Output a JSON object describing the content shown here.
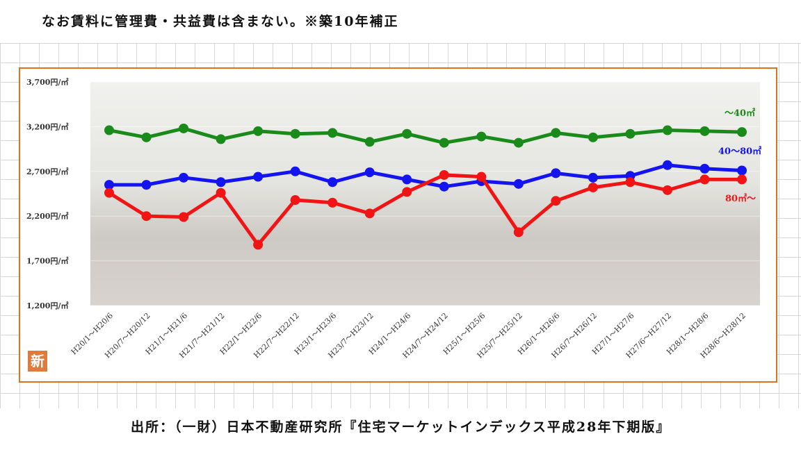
{
  "note": "なお賃料に管理費・共益費は含まない。※築10年補正",
  "source": "出所：（一財）日本不動産研究所『住宅マーケットインデックス平成28年下期版』",
  "badge": "新",
  "chart_data": {
    "type": "line",
    "title": "",
    "xlabel": "",
    "ylabel": "",
    "ylim": [
      1200,
      3700
    ],
    "yticks": [
      1200,
      1700,
      2200,
      2700,
      3200,
      3700
    ],
    "ytick_labels": [
      "1,200円/㎡",
      "1,700円/㎡",
      "2,200円/㎡",
      "2,700円/㎡",
      "3,200円/㎡",
      "3,700円/㎡"
    ],
    "categories": [
      "H20/1～H20/6",
      "H20/7～H20/12",
      "H21/1～H21/6",
      "H21/7～H21/12",
      "H22/1～H22/6",
      "H22/7～H22/12",
      "H23/1～H23/6",
      "H23/7～H23/12",
      "H24/1～H24/6",
      "H24/7～H24/12",
      "H25/1～H25/6",
      "H25/7～H25/12",
      "H26/1～H26/6",
      "H26/7～H26/12",
      "H27/1～H27/6",
      "H27/6～H27/12",
      "H28/1～H28/6",
      "H28/6～H28/12"
    ],
    "series": [
      {
        "name": "～40㎡",
        "color": "#1a8a1a",
        "values": [
          3160,
          3080,
          3180,
          3060,
          3150,
          3120,
          3130,
          3030,
          3120,
          3020,
          3090,
          3020,
          3130,
          3080,
          3120,
          3160,
          3150,
          3140
        ]
      },
      {
        "name": "40～80㎡",
        "color": "#1414f0",
        "values": [
          2550,
          2550,
          2630,
          2580,
          2640,
          2700,
          2580,
          2690,
          2610,
          2530,
          2590,
          2560,
          2680,
          2630,
          2650,
          2770,
          2730,
          2710
        ]
      },
      {
        "name": "80㎡～",
        "color": "#f01414",
        "values": [
          2460,
          2200,
          2190,
          2460,
          1880,
          2380,
          2350,
          2230,
          2470,
          2660,
          2640,
          2020,
          2370,
          2520,
          2580,
          2490,
          2610,
          2610
        ]
      }
    ]
  }
}
